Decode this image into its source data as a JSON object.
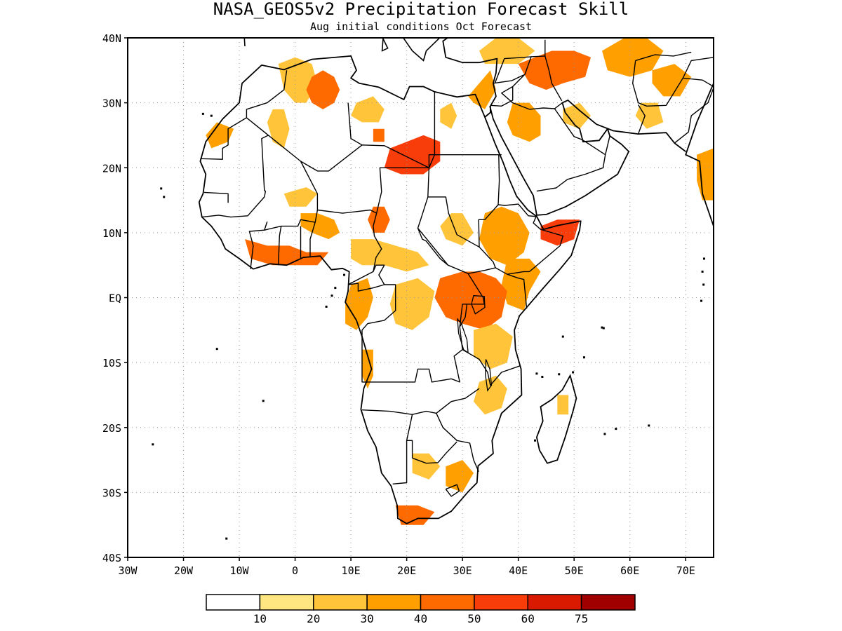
{
  "map": {
    "title": "NASA_GEOS5v2 Precipitation Forecast Skill",
    "subtitle": "Aug initial conditions  Oct Forecast",
    "x_ticks": [
      "30W",
      "20W",
      "10W",
      "0",
      "10E",
      "20E",
      "30E",
      "40E",
      "50E",
      "60E",
      "70E"
    ],
    "y_ticks": [
      "40N",
      "30N",
      "20N",
      "10N",
      "EQ",
      "10S",
      "20S",
      "30S",
      "40S"
    ],
    "lon_range": [
      -30,
      75
    ],
    "lat_range": [
      -40,
      40
    ],
    "grid": "dotted",
    "colorbar": {
      "labels": [
        "10",
        "20",
        "30",
        "40",
        "50",
        "60",
        "75"
      ],
      "colors": [
        "#ffffff",
        "#ffe680",
        "#ffc43a",
        "#ffa000",
        "#ff6a00",
        "#f83c0a",
        "#d91a00",
        "#a00000"
      ]
    },
    "regions": [
      {
        "name": "western-sahara-algeria",
        "level": 3,
        "pts": [
          [
            -14,
            27
          ],
          [
            -11,
            26
          ],
          [
            -12,
            24
          ],
          [
            -15,
            23
          ],
          [
            -16,
            25
          ]
        ]
      },
      {
        "name": "northwest-algeria",
        "level": 2,
        "pts": [
          [
            -3,
            36
          ],
          [
            0,
            37
          ],
          [
            3,
            36
          ],
          [
            4,
            33
          ],
          [
            2,
            30
          ],
          [
            0,
            30
          ],
          [
            -2,
            32
          ]
        ]
      },
      {
        "name": "algeria-hotspot",
        "level": 4,
        "pts": [
          [
            3,
            34
          ],
          [
            5,
            35
          ],
          [
            7,
            34
          ],
          [
            8,
            32
          ],
          [
            7,
            30
          ],
          [
            5,
            29
          ],
          [
            3,
            30
          ],
          [
            2,
            32
          ]
        ]
      },
      {
        "name": "algeria-west-strip",
        "level": 2,
        "pts": [
          [
            -4,
            29
          ],
          [
            -2,
            29
          ],
          [
            -1,
            26
          ],
          [
            -2,
            23
          ],
          [
            -4,
            24
          ],
          [
            -5,
            27
          ]
        ]
      },
      {
        "name": "libya-north",
        "level": 2,
        "pts": [
          [
            11,
            30
          ],
          [
            14,
            31
          ],
          [
            16,
            29
          ],
          [
            15,
            27
          ],
          [
            12,
            27
          ],
          [
            10,
            28
          ]
        ]
      },
      {
        "name": "libya-spot",
        "level": 4,
        "pts": [
          [
            14,
            26
          ],
          [
            16,
            26
          ],
          [
            16,
            24
          ],
          [
            14,
            24
          ]
        ]
      },
      {
        "name": "chad-libya-border",
        "level": 5,
        "pts": [
          [
            17,
            23
          ],
          [
            20,
            24
          ],
          [
            23,
            25
          ],
          [
            26,
            24
          ],
          [
            26,
            21
          ],
          [
            23,
            19
          ],
          [
            19,
            19
          ],
          [
            16,
            20
          ]
        ]
      },
      {
        "name": "egypt-strip",
        "level": 2,
        "pts": [
          [
            26,
            29
          ],
          [
            28,
            30
          ],
          [
            29,
            28
          ],
          [
            28,
            26
          ],
          [
            26,
            27
          ]
        ]
      },
      {
        "name": "levant-sinai",
        "level": 3,
        "pts": [
          [
            33,
            33
          ],
          [
            35,
            35
          ],
          [
            36,
            32
          ],
          [
            34,
            29
          ],
          [
            32,
            30
          ],
          [
            31,
            31
          ]
        ]
      },
      {
        "name": "turkey-syria",
        "level": 2,
        "pts": [
          [
            33,
            38
          ],
          [
            36,
            40
          ],
          [
            40,
            40
          ],
          [
            43,
            38
          ],
          [
            40,
            36
          ],
          [
            36,
            36
          ],
          [
            34,
            36
          ]
        ]
      },
      {
        "name": "iraq-iran",
        "level": 4,
        "pts": [
          [
            40,
            36
          ],
          [
            43,
            37
          ],
          [
            46,
            38
          ],
          [
            50,
            38
          ],
          [
            53,
            37
          ],
          [
            52,
            34
          ],
          [
            48,
            33
          ],
          [
            45,
            32
          ],
          [
            42,
            33
          ]
        ]
      },
      {
        "name": "saudi-central",
        "level": 3,
        "pts": [
          [
            39,
            30
          ],
          [
            42,
            30
          ],
          [
            44,
            28
          ],
          [
            44,
            25
          ],
          [
            42,
            24
          ],
          [
            39,
            25
          ],
          [
            38,
            27
          ]
        ]
      },
      {
        "name": "gulf-spot",
        "level": 2,
        "pts": [
          [
            48,
            29
          ],
          [
            51,
            30
          ],
          [
            53,
            28
          ],
          [
            51,
            26
          ],
          [
            48,
            27
          ]
        ]
      },
      {
        "name": "iran-east",
        "level": 3,
        "pts": [
          [
            55,
            38
          ],
          [
            59,
            40
          ],
          [
            63,
            40
          ],
          [
            66,
            38
          ],
          [
            64,
            35
          ],
          [
            60,
            34
          ],
          [
            56,
            35
          ]
        ]
      },
      {
        "name": "afghan-pakistan",
        "level": 3,
        "pts": [
          [
            64,
            35
          ],
          [
            68,
            36
          ],
          [
            71,
            34
          ],
          [
            69,
            31
          ],
          [
            66,
            31
          ],
          [
            64,
            33
          ]
        ]
      },
      {
        "name": "pakistan-south",
        "level": 2,
        "pts": [
          [
            62,
            30
          ],
          [
            65,
            30
          ],
          [
            66,
            27
          ],
          [
            63,
            26
          ],
          [
            61,
            28
          ]
        ]
      },
      {
        "name": "india-west",
        "level": 3,
        "pts": [
          [
            72,
            22
          ],
          [
            75,
            23
          ],
          [
            75,
            15
          ],
          [
            73,
            15
          ],
          [
            72,
            18
          ]
        ]
      },
      {
        "name": "nigeria-ghana-coast",
        "level": 4,
        "pts": [
          [
            -9,
            9
          ],
          [
            -5,
            8
          ],
          [
            -1,
            8
          ],
          [
            2,
            7
          ],
          [
            6,
            7
          ],
          [
            4,
            5
          ],
          [
            0,
            5
          ],
          [
            -4,
            5
          ],
          [
            -8,
            6
          ]
        ]
      },
      {
        "name": "nigeria-north",
        "level": 3,
        "pts": [
          [
            1,
            13
          ],
          [
            4,
            13
          ],
          [
            7,
            12
          ],
          [
            8,
            10
          ],
          [
            6,
            9
          ],
          [
            3,
            10
          ],
          [
            1,
            11
          ]
        ]
      },
      {
        "name": "sahel-band",
        "level": 2,
        "pts": [
          [
            -2,
            16
          ],
          [
            2,
            17
          ],
          [
            4,
            16
          ],
          [
            2,
            14
          ],
          [
            -1,
            14
          ]
        ]
      },
      {
        "name": "cameroon-car",
        "level": 2,
        "pts": [
          [
            10,
            9
          ],
          [
            14,
            9
          ],
          [
            18,
            8
          ],
          [
            22,
            7
          ],
          [
            24,
            5
          ],
          [
            20,
            4
          ],
          [
            16,
            5
          ],
          [
            12,
            5
          ],
          [
            10,
            6
          ]
        ]
      },
      {
        "name": "chad-south",
        "level": 4,
        "pts": [
          [
            14,
            14
          ],
          [
            16,
            14
          ],
          [
            17,
            12
          ],
          [
            16,
            10
          ],
          [
            14,
            10
          ],
          [
            13,
            12
          ]
        ]
      },
      {
        "name": "sudan-south",
        "level": 2,
        "pts": [
          [
            28,
            13
          ],
          [
            30,
            13
          ],
          [
            32,
            10
          ],
          [
            30,
            8
          ],
          [
            27,
            9
          ],
          [
            26,
            11
          ]
        ]
      },
      {
        "name": "ethiopia",
        "level": 3,
        "pts": [
          [
            34,
            13
          ],
          [
            37,
            14
          ],
          [
            40,
            13
          ],
          [
            42,
            10
          ],
          [
            41,
            7
          ],
          [
            38,
            5
          ],
          [
            35,
            6
          ],
          [
            33,
            9
          ]
        ]
      },
      {
        "name": "somalia-horn",
        "level": 5,
        "pts": [
          [
            44,
            11
          ],
          [
            47,
            12
          ],
          [
            51,
            12
          ],
          [
            50,
            9
          ],
          [
            47,
            8
          ],
          [
            44,
            9
          ]
        ]
      },
      {
        "name": "kenya-somalia",
        "level": 3,
        "pts": [
          [
            38,
            6
          ],
          [
            42,
            6
          ],
          [
            44,
            4
          ],
          [
            42,
            1
          ],
          [
            41,
            -2
          ],
          [
            38,
            -1
          ],
          [
            37,
            2
          ]
        ]
      },
      {
        "name": "east-africa-lakes",
        "level": 4,
        "pts": [
          [
            26,
            3
          ],
          [
            30,
            4
          ],
          [
            33,
            4
          ],
          [
            36,
            3
          ],
          [
            38,
            1
          ],
          [
            37,
            -3
          ],
          [
            34,
            -5
          ],
          [
            30,
            -4
          ],
          [
            27,
            -3
          ],
          [
            25,
            0
          ]
        ]
      },
      {
        "name": "congo-west",
        "level": 3,
        "pts": [
          [
            10,
            2
          ],
          [
            13,
            3
          ],
          [
            14,
            0
          ],
          [
            13,
            -3
          ],
          [
            11,
            -5
          ],
          [
            9,
            -4
          ],
          [
            9,
            -1
          ]
        ]
      },
      {
        "name": "congo-central",
        "level": 2,
        "pts": [
          [
            18,
            2
          ],
          [
            22,
            3
          ],
          [
            25,
            1
          ],
          [
            24,
            -3
          ],
          [
            21,
            -5
          ],
          [
            18,
            -4
          ],
          [
            17,
            -1
          ]
        ]
      },
      {
        "name": "tanzania",
        "level": 2,
        "pts": [
          [
            32,
            -5
          ],
          [
            36,
            -4
          ],
          [
            39,
            -6
          ],
          [
            38,
            -10
          ],
          [
            35,
            -11
          ],
          [
            32,
            -9
          ]
        ]
      },
      {
        "name": "angola-coast",
        "level": 3,
        "pts": [
          [
            12,
            -8
          ],
          [
            14,
            -8
          ],
          [
            14,
            -12
          ],
          [
            13,
            -14
          ],
          [
            12,
            -12
          ]
        ]
      },
      {
        "name": "mozambique",
        "level": 2,
        "pts": [
          [
            33,
            -13
          ],
          [
            36,
            -12
          ],
          [
            38,
            -14
          ],
          [
            37,
            -17
          ],
          [
            34,
            -18
          ],
          [
            32,
            -16
          ]
        ]
      },
      {
        "name": "madagascar-spot",
        "level": 2,
        "pts": [
          [
            47,
            -15
          ],
          [
            49,
            -15
          ],
          [
            49,
            -18
          ],
          [
            47,
            -18
          ]
        ]
      },
      {
        "name": "botswana",
        "level": 2,
        "pts": [
          [
            21,
            -24
          ],
          [
            24,
            -24
          ],
          [
            26,
            -26
          ],
          [
            24,
            -28
          ],
          [
            21,
            -27
          ]
        ]
      },
      {
        "name": "south-africa-east",
        "level": 3,
        "pts": [
          [
            27,
            -26
          ],
          [
            30,
            -25
          ],
          [
            32,
            -27
          ],
          [
            30,
            -30
          ],
          [
            27,
            -29
          ]
        ]
      },
      {
        "name": "south-africa-cape",
        "level": 4,
        "pts": [
          [
            18,
            -32
          ],
          [
            22,
            -32
          ],
          [
            25,
            -33
          ],
          [
            23,
            -35
          ],
          [
            19,
            -35
          ]
        ]
      }
    ]
  }
}
